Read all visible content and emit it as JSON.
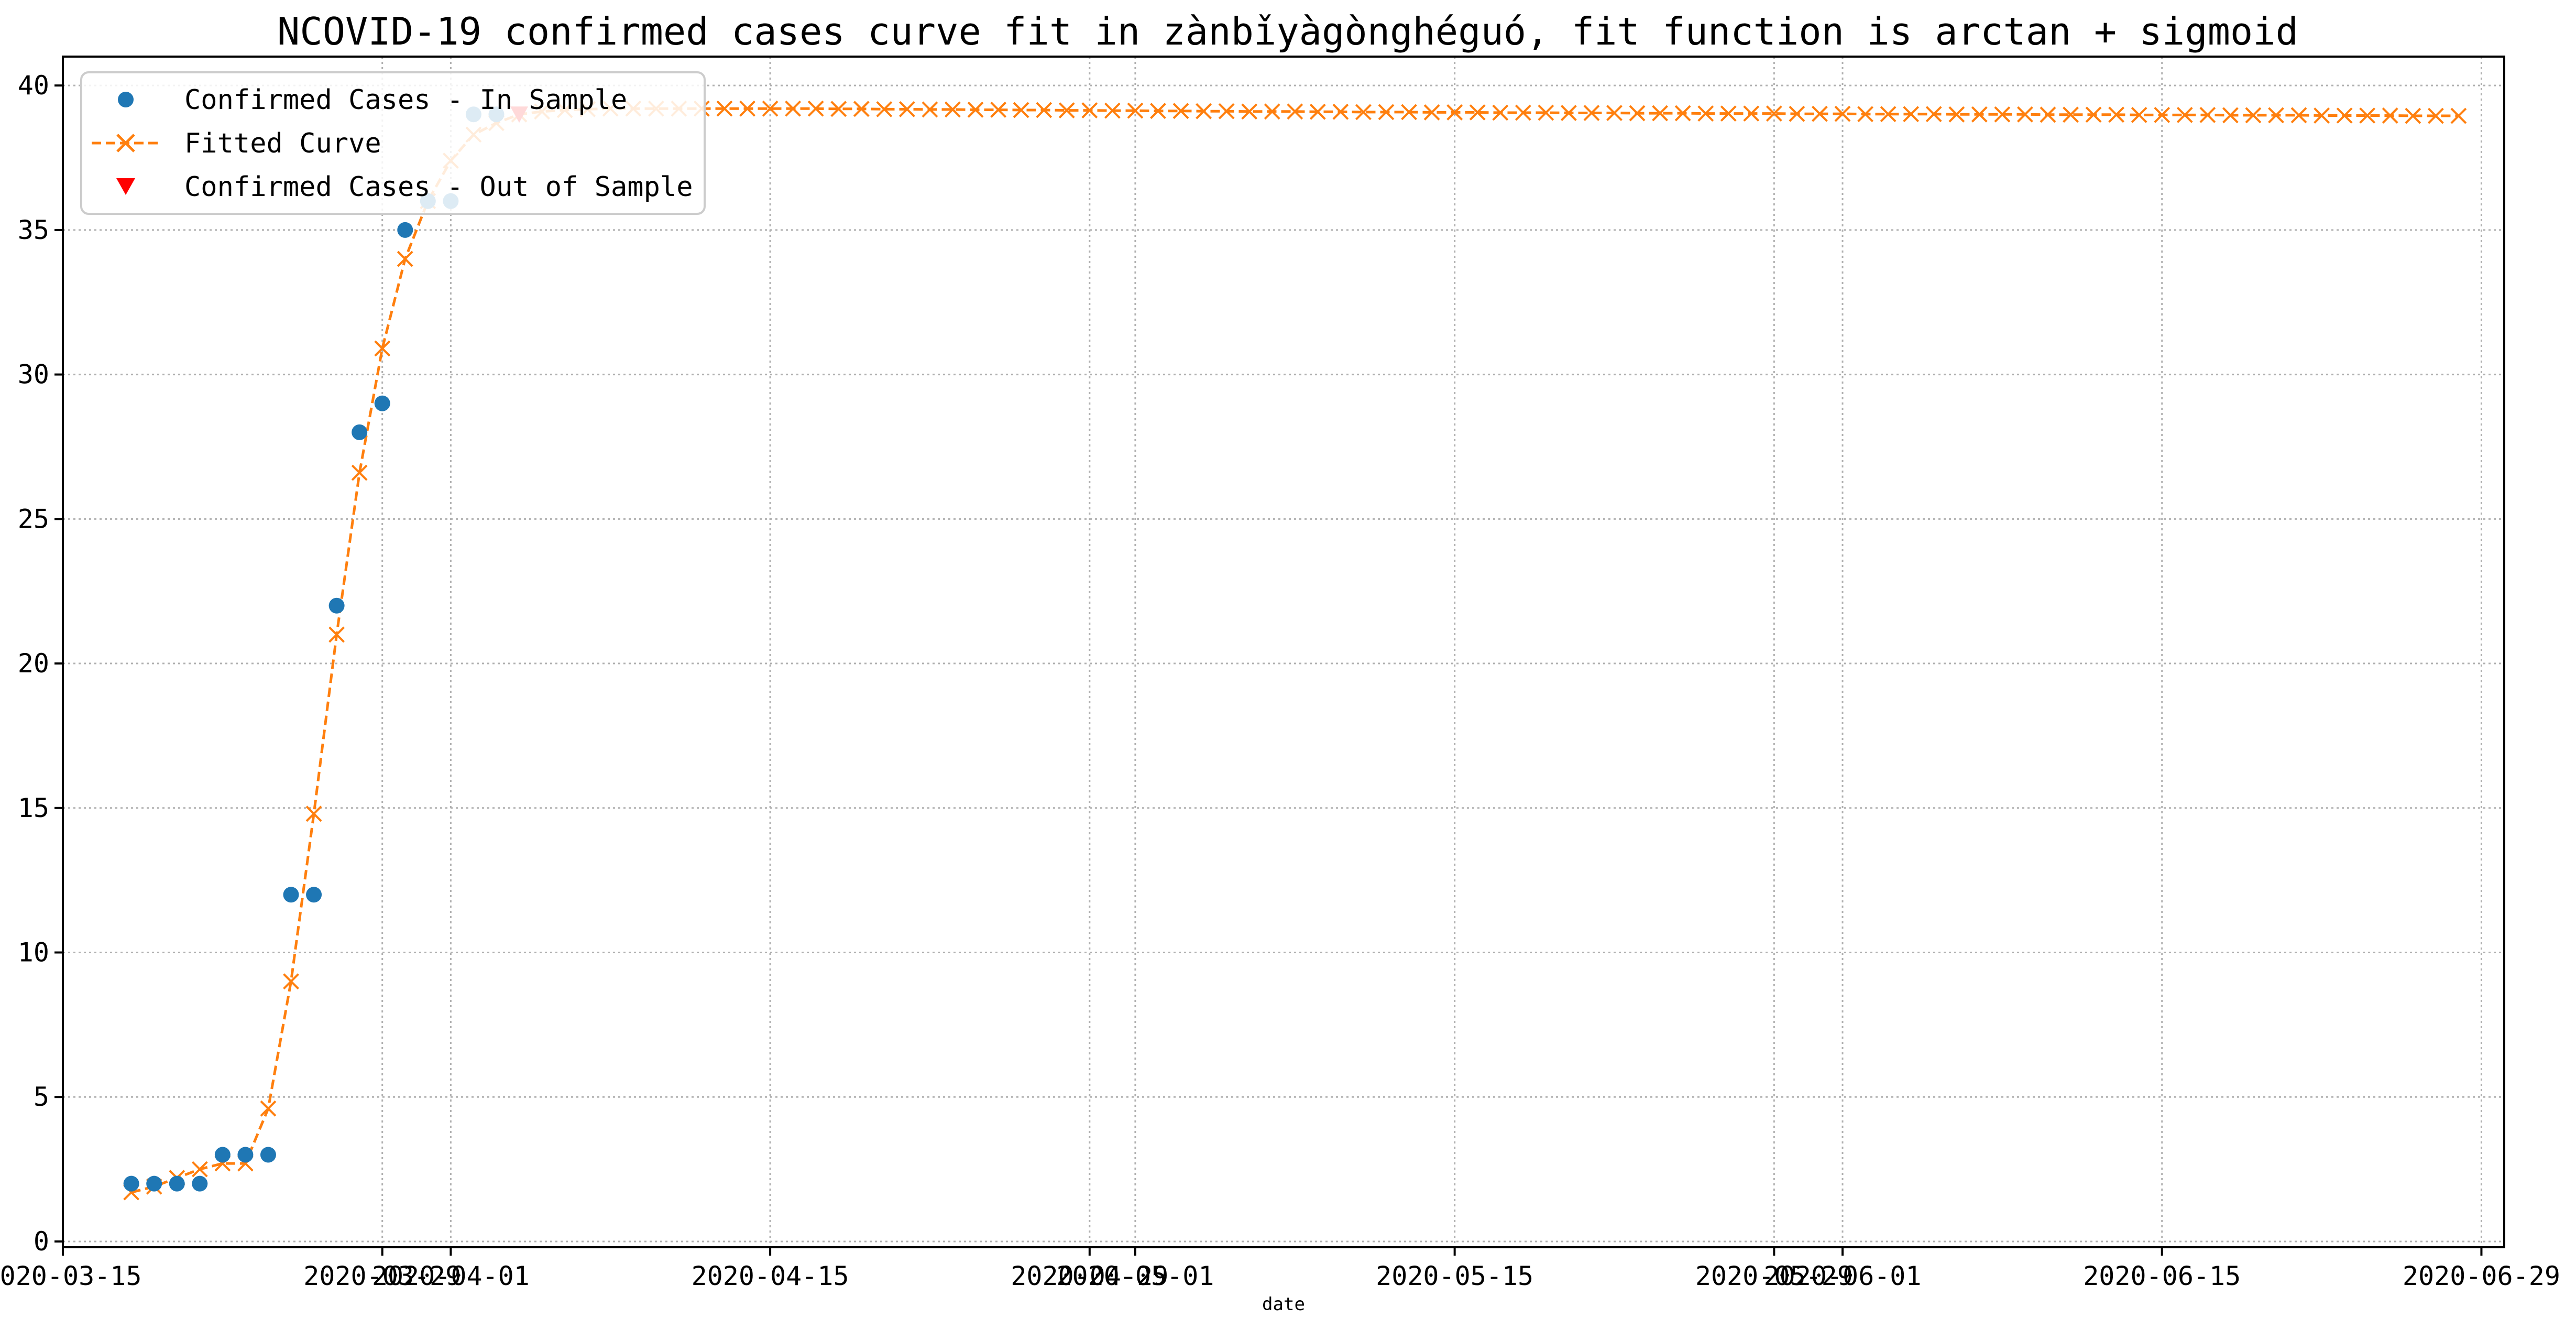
{
  "chart_data": {
    "type": "line",
    "title": "NCOVID-19 confirmed cases curve fit in zànbǐyàgònghéguó, fit function is arctan + sigmoid",
    "xlabel": "date",
    "ylabel": "",
    "x_axis_type": "date",
    "xlim": [
      "2020-03-15",
      "2020-06-30"
    ],
    "ylim": [
      -0.2,
      41.0
    ],
    "grid": true,
    "legend_position": "top-left",
    "x_ticks": [
      "2020-03-15",
      "2020-03-29",
      "2020-04-01",
      "2020-04-15",
      "2020-04-29",
      "2020-05-01",
      "2020-05-15",
      "2020-05-29",
      "2020-06-01",
      "2020-06-15",
      "2020-06-29"
    ],
    "y_ticks": [
      0,
      5,
      10,
      15,
      20,
      25,
      30,
      35,
      40
    ],
    "series": [
      {
        "name": "Confirmed Cases - In Sample",
        "marker": "circle",
        "color": "#1f77b4",
        "x": [
          "2020-03-18",
          "2020-03-19",
          "2020-03-20",
          "2020-03-21",
          "2020-03-22",
          "2020-03-23",
          "2020-03-24",
          "2020-03-25",
          "2020-03-26",
          "2020-03-27",
          "2020-03-28",
          "2020-03-29",
          "2020-03-30",
          "2020-03-31",
          "2020-04-01",
          "2020-04-02",
          "2020-04-03"
        ],
        "y": [
          2,
          2,
          2,
          2,
          3,
          3,
          3,
          12,
          12,
          22,
          28,
          29,
          35,
          36,
          36,
          39,
          39
        ]
      },
      {
        "name": "Fitted Curve",
        "marker": "x",
        "line_style": "dashed",
        "color": "#ff7f0e",
        "x_start": "2020-03-18",
        "x_step_days": 1,
        "y": [
          1.7,
          1.9,
          2.2,
          2.5,
          2.7,
          2.7,
          4.6,
          9.0,
          14.8,
          21.0,
          26.6,
          30.9,
          34.0,
          36.0,
          37.4,
          38.3,
          38.7,
          39.0,
          39.1,
          39.15,
          39.18,
          39.2,
          39.2,
          39.2,
          39.2,
          39.2,
          39.2,
          39.2,
          39.2,
          39.2,
          39.2,
          39.19,
          39.19,
          39.18,
          39.18,
          39.17,
          39.17,
          39.16,
          39.16,
          39.15,
          39.15,
          39.14,
          39.14,
          39.13,
          39.13,
          39.12,
          39.12,
          39.11,
          39.11,
          39.1,
          39.1,
          39.1,
          39.09,
          39.09,
          39.08,
          39.08,
          39.08,
          39.07,
          39.07,
          39.07,
          39.06,
          39.06,
          39.06,
          39.05,
          39.05,
          39.05,
          39.04,
          39.04,
          39.04,
          39.03,
          39.03,
          39.03,
          39.03,
          39.02,
          39.02,
          39.02,
          39.01,
          39.01,
          39.01,
          39.01,
          39.0,
          39.0,
          39.0,
          39.0,
          38.99,
          38.99,
          38.99,
          38.99,
          38.98,
          38.98,
          38.98,
          38.98,
          38.97,
          38.97,
          38.97,
          38.97,
          38.96,
          38.96,
          38.96,
          38.96,
          38.95,
          38.95,
          38.95
        ]
      },
      {
        "name": "Confirmed Cases - Out of Sample",
        "marker": "triangle-down",
        "color": "#ff0000",
        "x": [
          "2020-04-04"
        ],
        "y": [
          39
        ]
      }
    ]
  }
}
